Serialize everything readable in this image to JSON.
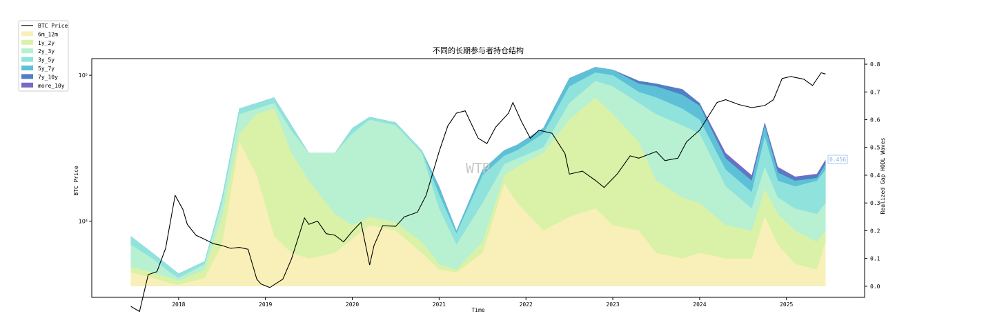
{
  "chart_data": {
    "type": "area",
    "title": "不同的长期参与者持仓结构",
    "xlabel": "Time",
    "ylabel_left": "BTC Price",
    "ylabel_right": "Realized Gap HODL Waves",
    "watermark": "WTR",
    "last_value_label": "0.456",
    "x_ticks": [
      "2018",
      "2019",
      "2020",
      "2021",
      "2022",
      "2023",
      "2024",
      "2025"
    ],
    "x_range": [
      2017.0,
      2025.9
    ],
    "y_left_ticks": [
      "10⁴",
      "10⁵"
    ],
    "y_left_scale": "log",
    "y_left_range": [
      3000,
      130000
    ],
    "y_right_ticks": [
      "0.0",
      "0.1",
      "0.2",
      "0.3",
      "0.4",
      "0.5",
      "0.6",
      "0.7",
      "0.8"
    ],
    "y_right_range": [
      -0.04,
      0.82
    ],
    "grid": false,
    "legend_position": "top-left outside",
    "series": [
      {
        "name": "6m_12m",
        "color": "#f8f0b8",
        "x": [
          2017.45,
          2017.7,
          2017.9,
          2018.0,
          2018.3,
          2018.5,
          2018.7,
          2018.9,
          2019.1,
          2019.3,
          2019.5,
          2019.8,
          2020.0,
          2020.2,
          2020.5,
          2020.8,
          2021.0,
          2021.2,
          2021.5,
          2021.75,
          2021.9,
          2022.2,
          2022.5,
          2022.8,
          2023.0,
          2023.3,
          2023.5,
          2023.8,
          2024.0,
          2024.3,
          2024.6,
          2024.75,
          2024.9,
          2025.1,
          2025.35,
          2025.45
        ],
        "values": [
          0.05,
          0.03,
          0.01,
          0.005,
          0.03,
          0.15,
          0.52,
          0.4,
          0.18,
          0.12,
          0.1,
          0.12,
          0.17,
          0.22,
          0.2,
          0.12,
          0.06,
          0.05,
          0.12,
          0.37,
          0.3,
          0.2,
          0.25,
          0.28,
          0.22,
          0.2,
          0.12,
          0.1,
          0.12,
          0.1,
          0.1,
          0.25,
          0.15,
          0.08,
          0.06,
          0.16
        ]
      },
      {
        "name": "1y_2y",
        "color": "#d9f2a8",
        "x": [
          2017.45,
          2017.7,
          2017.9,
          2018.0,
          2018.3,
          2018.5,
          2018.7,
          2018.9,
          2019.1,
          2019.3,
          2019.5,
          2019.8,
          2020.0,
          2020.2,
          2020.5,
          2020.8,
          2021.0,
          2021.2,
          2021.5,
          2021.75,
          2021.9,
          2022.2,
          2022.5,
          2022.8,
          2023.0,
          2023.3,
          2023.5,
          2023.8,
          2024.0,
          2024.3,
          2024.6,
          2024.75,
          2024.9,
          2025.1,
          2025.35,
          2025.45
        ],
        "values": [
          0.07,
          0.05,
          0.03,
          0.02,
          0.06,
          0.25,
          0.55,
          0.62,
          0.64,
          0.48,
          0.38,
          0.26,
          0.22,
          0.25,
          0.23,
          0.16,
          0.08,
          0.06,
          0.16,
          0.4,
          0.43,
          0.48,
          0.6,
          0.68,
          0.62,
          0.52,
          0.38,
          0.32,
          0.3,
          0.22,
          0.2,
          0.35,
          0.26,
          0.2,
          0.16,
          0.2
        ]
      },
      {
        "name": "2y_3y",
        "color": "#b8f0d2",
        "x": [
          2017.45,
          2017.7,
          2017.9,
          2018.0,
          2018.3,
          2018.5,
          2018.7,
          2018.9,
          2019.1,
          2019.3,
          2019.5,
          2019.8,
          2020.0,
          2020.2,
          2020.5,
          2020.8,
          2021.0,
          2021.2,
          2021.5,
          2021.75,
          2021.9,
          2022.2,
          2022.5,
          2022.8,
          2023.0,
          2023.3,
          2023.5,
          2023.8,
          2024.0,
          2024.3,
          2024.6,
          2024.75,
          2024.9,
          2025.1,
          2025.35,
          2025.45
        ],
        "values": [
          0.15,
          0.1,
          0.05,
          0.03,
          0.08,
          0.3,
          0.62,
          0.64,
          0.66,
          0.56,
          0.48,
          0.48,
          0.55,
          0.6,
          0.58,
          0.48,
          0.28,
          0.15,
          0.3,
          0.44,
          0.46,
          0.5,
          0.66,
          0.74,
          0.72,
          0.66,
          0.62,
          0.58,
          0.55,
          0.36,
          0.28,
          0.43,
          0.32,
          0.28,
          0.26,
          0.3
        ]
      },
      {
        "name": "3y_5y",
        "color": "#8fe3dc",
        "x": [
          2017.45,
          2017.7,
          2017.9,
          2018.0,
          2018.3,
          2018.5,
          2018.7,
          2018.9,
          2019.1,
          2019.3,
          2019.5,
          2019.8,
          2020.0,
          2020.2,
          2020.5,
          2020.8,
          2021.0,
          2021.2,
          2021.5,
          2021.75,
          2021.9,
          2022.2,
          2022.5,
          2022.8,
          2023.0,
          2023.3,
          2023.5,
          2023.8,
          2024.0,
          2024.3,
          2024.6,
          2024.75,
          2024.9,
          2025.1,
          2025.35,
          2025.45
        ],
        "values": [
          0.18,
          0.12,
          0.07,
          0.045,
          0.09,
          0.32,
          0.64,
          0.66,
          0.68,
          0.58,
          0.48,
          0.48,
          0.57,
          0.61,
          0.59,
          0.49,
          0.33,
          0.19,
          0.4,
          0.47,
          0.49,
          0.55,
          0.72,
          0.77,
          0.76,
          0.7,
          0.68,
          0.64,
          0.6,
          0.42,
          0.34,
          0.54,
          0.38,
          0.36,
          0.38,
          0.42
        ]
      },
      {
        "name": "5y_7y",
        "color": "#5ec0d6",
        "x": [
          2017.45,
          2017.7,
          2017.9,
          2018.0,
          2018.3,
          2018.5,
          2018.7,
          2018.9,
          2019.1,
          2019.3,
          2019.5,
          2019.8,
          2020.0,
          2020.2,
          2020.5,
          2020.8,
          2021.0,
          2021.2,
          2021.5,
          2021.75,
          2021.9,
          2022.2,
          2022.5,
          2022.8,
          2023.0,
          2023.3,
          2023.5,
          2023.8,
          2024.0,
          2024.3,
          2024.6,
          2024.75,
          2024.9,
          2025.1,
          2025.35,
          2025.45
        ],
        "values": [
          0.18,
          0.12,
          0.07,
          0.045,
          0.09,
          0.32,
          0.64,
          0.66,
          0.68,
          0.58,
          0.48,
          0.48,
          0.57,
          0.61,
          0.59,
          0.49,
          0.36,
          0.2,
          0.42,
          0.49,
          0.51,
          0.57,
          0.75,
          0.79,
          0.78,
          0.73,
          0.72,
          0.69,
          0.65,
          0.46,
          0.38,
          0.58,
          0.41,
          0.38,
          0.39,
          0.44
        ]
      },
      {
        "name": "7y_10y",
        "color": "#4f7fc4",
        "x": [
          2017.45,
          2017.7,
          2017.9,
          2018.0,
          2018.3,
          2018.5,
          2018.7,
          2018.9,
          2019.1,
          2019.3,
          2019.5,
          2019.8,
          2020.0,
          2020.2,
          2020.5,
          2020.8,
          2021.0,
          2021.2,
          2021.5,
          2021.75,
          2021.9,
          2022.2,
          2022.5,
          2022.8,
          2023.0,
          2023.3,
          2023.5,
          2023.8,
          2024.0,
          2024.3,
          2024.6,
          2024.75,
          2024.9,
          2025.1,
          2025.35,
          2025.45
        ],
        "values": [
          0.18,
          0.12,
          0.07,
          0.045,
          0.09,
          0.32,
          0.64,
          0.66,
          0.68,
          0.58,
          0.48,
          0.48,
          0.57,
          0.61,
          0.59,
          0.49,
          0.36,
          0.2,
          0.42,
          0.49,
          0.51,
          0.57,
          0.75,
          0.79,
          0.78,
          0.74,
          0.73,
          0.71,
          0.66,
          0.47,
          0.39,
          0.59,
          0.42,
          0.39,
          0.4,
          0.45
        ]
      },
      {
        "name": "more_10y",
        "color": "#7b68c6",
        "x": [
          2017.45,
          2017.7,
          2017.9,
          2018.0,
          2018.3,
          2018.5,
          2018.7,
          2018.9,
          2019.1,
          2019.3,
          2019.5,
          2019.8,
          2020.0,
          2020.2,
          2020.5,
          2020.8,
          2021.0,
          2021.2,
          2021.5,
          2021.75,
          2021.9,
          2022.2,
          2022.5,
          2022.8,
          2023.0,
          2023.3,
          2023.5,
          2023.8,
          2024.0,
          2024.3,
          2024.6,
          2024.75,
          2024.9,
          2025.1,
          2025.35,
          2025.45
        ],
        "values": [
          0.18,
          0.12,
          0.07,
          0.045,
          0.09,
          0.32,
          0.64,
          0.66,
          0.68,
          0.58,
          0.48,
          0.48,
          0.57,
          0.61,
          0.59,
          0.49,
          0.36,
          0.2,
          0.42,
          0.49,
          0.51,
          0.57,
          0.75,
          0.79,
          0.78,
          0.74,
          0.73,
          0.71,
          0.66,
          0.48,
          0.4,
          0.59,
          0.43,
          0.395,
          0.405,
          0.456
        ]
      },
      {
        "name": "BTC Price",
        "color": "#000000",
        "kind": "line",
        "axis": "left",
        "x": [
          2017.45,
          2017.55,
          2017.65,
          2017.75,
          2017.85,
          2017.96,
          2018.05,
          2018.1,
          2018.2,
          2018.3,
          2018.4,
          2018.5,
          2018.6,
          2018.7,
          2018.8,
          2018.9,
          2018.95,
          2019.05,
          2019.2,
          2019.3,
          2019.45,
          2019.5,
          2019.6,
          2019.7,
          2019.8,
          2019.9,
          2020.0,
          2020.1,
          2020.2,
          2020.25,
          2020.35,
          2020.5,
          2020.6,
          2020.75,
          2020.85,
          2021.0,
          2021.1,
          2021.2,
          2021.3,
          2021.45,
          2021.55,
          2021.65,
          2021.8,
          2021.85,
          2021.95,
          2022.05,
          2022.15,
          2022.3,
          2022.45,
          2022.5,
          2022.65,
          2022.8,
          2022.9,
          2023.05,
          2023.2,
          2023.3,
          2023.5,
          2023.6,
          2023.75,
          2023.85,
          2024.0,
          2024.2,
          2024.3,
          2024.45,
          2024.6,
          2024.75,
          2024.85,
          2024.95,
          2025.05,
          2025.2,
          2025.3,
          2025.4,
          2025.45
        ],
        "values": [
          2600,
          2400,
          4300,
          4500,
          6500,
          15000,
          12000,
          9500,
          8000,
          7500,
          7000,
          6800,
          6500,
          6600,
          6400,
          4000,
          3700,
          3500,
          4000,
          5500,
          10500,
          9500,
          10000,
          8200,
          8000,
          7200,
          8500,
          9800,
          5000,
          6800,
          9300,
          9200,
          10700,
          11500,
          15000,
          30000,
          45000,
          55000,
          57000,
          37000,
          34000,
          44000,
          55000,
          65000,
          48000,
          37000,
          42000,
          40000,
          29000,
          21000,
          22000,
          19000,
          17000,
          21000,
          28000,
          27000,
          30000,
          26000,
          27000,
          35000,
          42000,
          65000,
          68000,
          63000,
          60000,
          62000,
          68000,
          95000,
          98000,
          94000,
          85000,
          104000,
          102000
        ]
      }
    ]
  }
}
